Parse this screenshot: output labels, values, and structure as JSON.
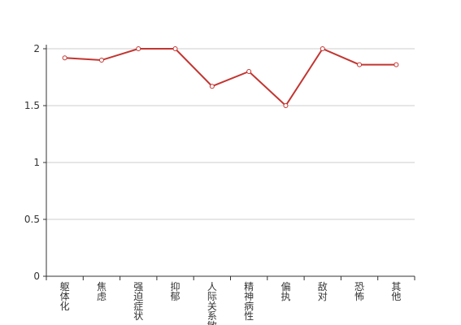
{
  "chart_data": {
    "type": "line",
    "categories": [
      "躯体化",
      "焦虑",
      "强迫症状",
      "抑郁",
      "人际关系敏感",
      "精神病性",
      "偏执",
      "敌对",
      "恐怖",
      "其他"
    ],
    "series": [
      {
        "color": "#c23531",
        "values": [
          1.92,
          1.9,
          2.0,
          2.0,
          1.67,
          1.8,
          1.5,
          2.0,
          1.86,
          1.86
        ]
      }
    ],
    "ylim": [
      0,
      2
    ],
    "yticks": [
      0,
      0.5,
      1,
      1.5,
      2
    ],
    "grid": true
  }
}
